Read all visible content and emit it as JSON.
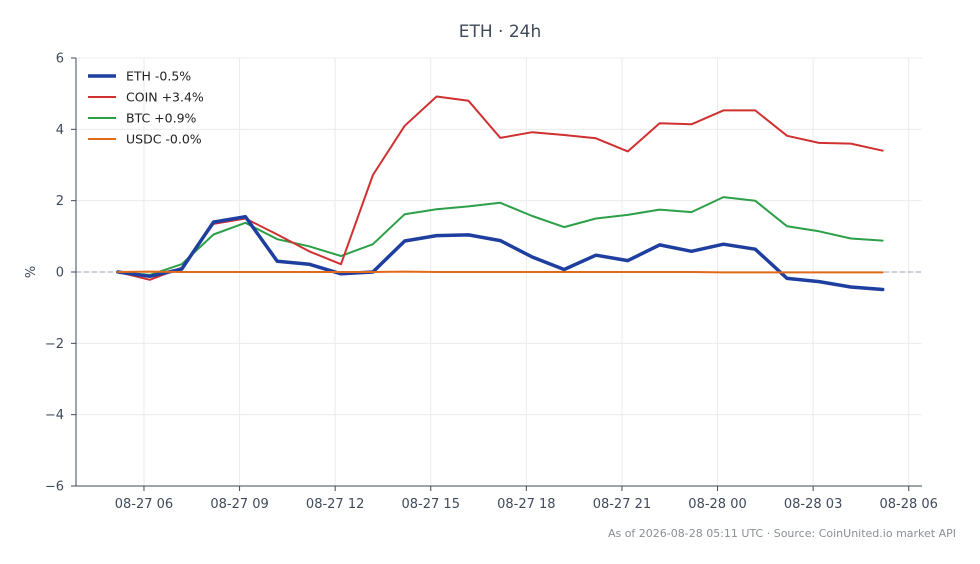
{
  "chart_data": {
    "type": "line",
    "title": "ETH · 24h",
    "xlabel": "",
    "ylabel": "%",
    "ylim": [
      -6,
      6
    ],
    "xlim": [
      "2026-08-27 03:52",
      "2026-08-28 06:25"
    ],
    "xticks": [
      "2026-08-27 06:00",
      "2026-08-27 09:00",
      "2026-08-27 12:00",
      "2026-08-27 15:00",
      "2026-08-27 18:00",
      "2026-08-27 21:00",
      "2026-08-28 00:00",
      "2026-08-28 03:00",
      "2026-08-28 06:00"
    ],
    "xtick_labels": [
      "08-27 06",
      "08-27 09",
      "08-27 12",
      "08-27 15",
      "08-27 18",
      "08-27 21",
      "08-28 00",
      "08-28 03",
      "08-28 06"
    ],
    "yticks": [
      -6,
      -4,
      -2,
      0,
      2,
      4,
      6
    ],
    "ytick_labels": [
      "−6",
      "−4",
      "−2",
      "0",
      "2",
      "4",
      "6"
    ],
    "grid": true,
    "zero_line": true,
    "legend_position": "top-left",
    "x": [
      "2026-08-27 05:11",
      "2026-08-27 06:11",
      "2026-08-27 07:11",
      "2026-08-27 08:11",
      "2026-08-27 09:11",
      "2026-08-27 10:11",
      "2026-08-27 11:11",
      "2026-08-27 12:11",
      "2026-08-27 13:11",
      "2026-08-27 14:11",
      "2026-08-27 15:11",
      "2026-08-27 16:11",
      "2026-08-27 17:11",
      "2026-08-27 18:11",
      "2026-08-27 19:11",
      "2026-08-27 20:11",
      "2026-08-27 21:11",
      "2026-08-27 22:11",
      "2026-08-27 23:11",
      "2026-08-28 00:11",
      "2026-08-28 01:11",
      "2026-08-28 02:11",
      "2026-08-28 03:11",
      "2026-08-28 04:11",
      "2026-08-28 05:11"
    ],
    "series": [
      {
        "name": "ETH -0.5%",
        "color": "#1f3fa0",
        "width": 3.5,
        "values": [
          0.0,
          -0.12,
          0.08,
          1.4,
          1.55,
          0.3,
          0.22,
          -0.05,
          0.0,
          0.87,
          1.02,
          1.04,
          0.88,
          0.42,
          0.07,
          0.47,
          0.32,
          0.76,
          0.58,
          0.78,
          0.64,
          -0.18,
          -0.27,
          -0.42,
          -0.49
        ]
      },
      {
        "name": "COIN +3.4%",
        "color": "#d03030",
        "width": 2,
        "values": [
          0.0,
          -0.22,
          0.12,
          1.35,
          1.5,
          1.05,
          0.58,
          0.22,
          2.72,
          4.1,
          4.92,
          4.8,
          3.76,
          3.92,
          3.84,
          3.75,
          3.38,
          4.17,
          4.14,
          4.53,
          4.53,
          3.82,
          3.62,
          3.6,
          3.4
        ]
      },
      {
        "name": "BTC +0.9%",
        "color": "#2ca048",
        "width": 2,
        "values": [
          0.0,
          -0.08,
          0.22,
          1.05,
          1.38,
          0.92,
          0.72,
          0.45,
          0.78,
          1.62,
          1.76,
          1.84,
          1.94,
          1.57,
          1.26,
          1.5,
          1.6,
          1.75,
          1.68,
          2.1,
          2.0,
          1.28,
          1.14,
          0.94,
          0.88
        ]
      },
      {
        "name": "USDC -0.0%",
        "color": "#e06a1a",
        "width": 2,
        "values": [
          0.0,
          0.01,
          0.0,
          0.0,
          0.0,
          0.0,
          0.0,
          0.0,
          0.0,
          0.01,
          0.0,
          0.0,
          0.0,
          0.0,
          0.0,
          0.0,
          0.0,
          0.0,
          0.0,
          -0.01,
          -0.01,
          -0.01,
          -0.01,
          -0.01,
          -0.01
        ]
      }
    ]
  },
  "footer": "As of 2026-08-28 05:11 UTC · Source: CoinUnited.io market API"
}
